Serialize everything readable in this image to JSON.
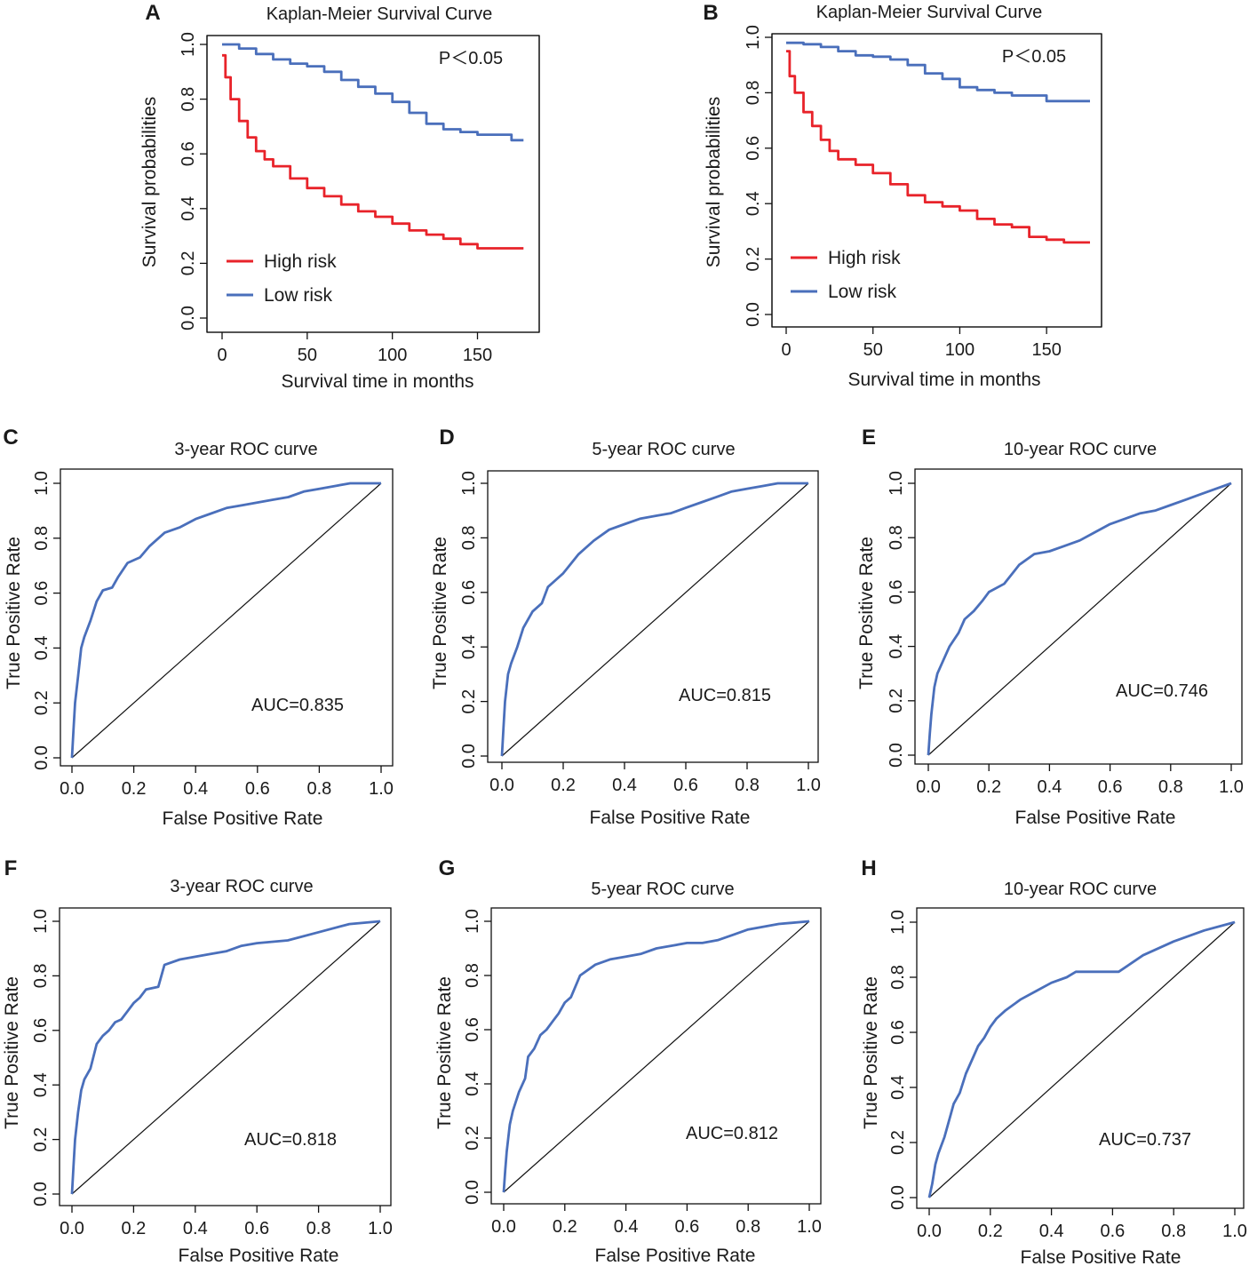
{
  "chart_data": [
    {
      "id": "A",
      "type": "line",
      "panel_label": "A",
      "title": "Kaplan-Meier Survival Curve",
      "xlabel": "Survival time in months",
      "ylabel": "Survival probabilities",
      "xlim": [
        0,
        180
      ],
      "ylim": [
        0,
        1
      ],
      "xticks": [
        0,
        50,
        100,
        150
      ],
      "xtick_labels": [
        "0",
        "50",
        "100",
        "150"
      ],
      "yticks": [
        0,
        0.2,
        0.4,
        0.6,
        0.8,
        1.0
      ],
      "ytick_labels": [
        "0.0",
        "0.2",
        "0.4",
        "0.6",
        "0.8",
        "1.0"
      ],
      "annotation": "P＜0.05",
      "legend_position": "bottom-left",
      "series": [
        {
          "name": "High risk",
          "color": "#e8232a",
          "x": [
            0,
            2,
            5,
            10,
            15,
            20,
            25,
            30,
            40,
            50,
            60,
            70,
            80,
            90,
            100,
            110,
            120,
            130,
            140,
            150,
            160,
            170,
            177
          ],
          "y": [
            0.96,
            0.88,
            0.8,
            0.72,
            0.66,
            0.61,
            0.58,
            0.555,
            0.51,
            0.475,
            0.445,
            0.415,
            0.39,
            0.37,
            0.345,
            0.32,
            0.305,
            0.29,
            0.27,
            0.255,
            0.255,
            0.255,
            0.255
          ]
        },
        {
          "name": "Low risk",
          "color": "#4a6fbb",
          "x": [
            0,
            10,
            20,
            30,
            40,
            50,
            60,
            70,
            80,
            90,
            100,
            110,
            120,
            130,
            140,
            150,
            160,
            170,
            177
          ],
          "y": [
            1.0,
            0.985,
            0.965,
            0.945,
            0.93,
            0.92,
            0.9,
            0.87,
            0.845,
            0.82,
            0.79,
            0.75,
            0.71,
            0.69,
            0.68,
            0.67,
            0.67,
            0.65,
            0.65
          ]
        }
      ]
    },
    {
      "id": "B",
      "type": "line",
      "panel_label": "B",
      "title": "Kaplan-Meier Survival Curve",
      "xlabel": "Survival time in months",
      "ylabel": "Survival probabilities",
      "xlim": [
        0,
        175
      ],
      "ylim": [
        0,
        1
      ],
      "xticks": [
        0,
        50,
        100,
        150
      ],
      "xtick_labels": [
        "0",
        "50",
        "100",
        "150"
      ],
      "yticks": [
        0,
        0.2,
        0.4,
        0.6,
        0.8,
        1.0
      ],
      "ytick_labels": [
        "0.0",
        "0.2",
        "0.4",
        "0.6",
        "0.8",
        "1.0"
      ],
      "annotation": "P＜0.05",
      "legend_position": "bottom-left",
      "series": [
        {
          "name": "High risk",
          "color": "#e8232a",
          "x": [
            0,
            2,
            5,
            10,
            15,
            20,
            25,
            30,
            40,
            50,
            60,
            70,
            80,
            90,
            100,
            110,
            120,
            130,
            136,
            140,
            150,
            160,
            175
          ],
          "y": [
            0.95,
            0.86,
            0.8,
            0.73,
            0.68,
            0.63,
            0.59,
            0.56,
            0.54,
            0.51,
            0.47,
            0.43,
            0.405,
            0.39,
            0.375,
            0.345,
            0.325,
            0.315,
            0.315,
            0.28,
            0.27,
            0.26,
            0.26
          ]
        },
        {
          "name": "Low risk",
          "color": "#4a6fbb",
          "x": [
            0,
            10,
            20,
            30,
            40,
            50,
            60,
            70,
            80,
            90,
            100,
            110,
            120,
            130,
            140,
            150,
            160,
            175
          ],
          "y": [
            0.98,
            0.975,
            0.965,
            0.95,
            0.935,
            0.93,
            0.92,
            0.9,
            0.87,
            0.85,
            0.82,
            0.81,
            0.8,
            0.79,
            0.79,
            0.77,
            0.77,
            0.77
          ]
        }
      ]
    },
    {
      "id": "C",
      "type": "line",
      "panel_label": "C",
      "title": "3-year ROC curve",
      "xlabel": "False Positive Rate",
      "ylabel": "True Positive Rate",
      "xlim": [
        0,
        1
      ],
      "ylim": [
        0,
        1
      ],
      "xticks": [
        0,
        0.2,
        0.4,
        0.6,
        0.8,
        1.0
      ],
      "xtick_labels": [
        "0.0",
        "0.2",
        "0.4",
        "0.6",
        "0.8",
        "1.0"
      ],
      "yticks": [
        0,
        0.2,
        0.4,
        0.6,
        0.8,
        1.0
      ],
      "ytick_labels": [
        "0.0",
        "0.2",
        "0.4",
        "0.6",
        "0.8",
        "1.0"
      ],
      "annotation": "AUC=0.835",
      "diagonal": true,
      "series": [
        {
          "name": "ROC",
          "color": "#4a6fbb",
          "x": [
            0,
            0.005,
            0.01,
            0.02,
            0.03,
            0.04,
            0.06,
            0.08,
            0.1,
            0.13,
            0.15,
            0.18,
            0.2,
            0.22,
            0.25,
            0.3,
            0.35,
            0.4,
            0.45,
            0.5,
            0.55,
            0.6,
            0.65,
            0.7,
            0.75,
            0.8,
            0.85,
            0.9,
            1.0
          ],
          "y": [
            0,
            0.1,
            0.2,
            0.3,
            0.4,
            0.44,
            0.5,
            0.57,
            0.61,
            0.62,
            0.66,
            0.71,
            0.72,
            0.73,
            0.77,
            0.82,
            0.84,
            0.87,
            0.89,
            0.91,
            0.92,
            0.93,
            0.94,
            0.95,
            0.97,
            0.98,
            0.99,
            1.0,
            1.0
          ]
        }
      ]
    },
    {
      "id": "D",
      "type": "line",
      "panel_label": "D",
      "title": "5-year ROC curve",
      "xlabel": "False Positive Rate",
      "ylabel": "True Positive Rate",
      "xlim": [
        0,
        1
      ],
      "ylim": [
        0,
        1
      ],
      "xticks": [
        0,
        0.2,
        0.4,
        0.6,
        0.8,
        1.0
      ],
      "xtick_labels": [
        "0.0",
        "0.2",
        "0.4",
        "0.6",
        "0.8",
        "1.0"
      ],
      "yticks": [
        0,
        0.2,
        0.4,
        0.6,
        0.8,
        1.0
      ],
      "ytick_labels": [
        "0.0",
        "0.2",
        "0.4",
        "0.6",
        "0.8",
        "1.0"
      ],
      "annotation": "AUC=0.815",
      "diagonal": true,
      "series": [
        {
          "name": "ROC",
          "color": "#4a6fbb",
          "x": [
            0,
            0.005,
            0.01,
            0.02,
            0.03,
            0.05,
            0.07,
            0.1,
            0.13,
            0.15,
            0.18,
            0.2,
            0.25,
            0.3,
            0.35,
            0.4,
            0.45,
            0.5,
            0.55,
            0.6,
            0.65,
            0.7,
            0.75,
            0.8,
            0.85,
            0.9,
            1.0
          ],
          "y": [
            0,
            0.1,
            0.2,
            0.3,
            0.34,
            0.4,
            0.47,
            0.53,
            0.56,
            0.62,
            0.65,
            0.67,
            0.74,
            0.79,
            0.83,
            0.85,
            0.87,
            0.88,
            0.89,
            0.91,
            0.93,
            0.95,
            0.97,
            0.98,
            0.99,
            1.0,
            1.0
          ]
        }
      ]
    },
    {
      "id": "E",
      "type": "line",
      "panel_label": "E",
      "title": "10-year ROC curve",
      "xlabel": "False Positive Rate",
      "ylabel": "True Positive Rate",
      "xlim": [
        0,
        1
      ],
      "ylim": [
        0,
        1
      ],
      "xticks": [
        0,
        0.2,
        0.4,
        0.6,
        0.8,
        1.0
      ],
      "xtick_labels": [
        "0.0",
        "0.2",
        "0.4",
        "0.6",
        "0.8",
        "1.0"
      ],
      "yticks": [
        0,
        0.2,
        0.4,
        0.6,
        0.8,
        1.0
      ],
      "ytick_labels": [
        "0.0",
        "0.2",
        "0.4",
        "0.6",
        "0.8",
        "1.0"
      ],
      "annotation": "AUC=0.746",
      "diagonal": true,
      "series": [
        {
          "name": "ROC",
          "color": "#4a6fbb",
          "x": [
            0,
            0.005,
            0.01,
            0.02,
            0.03,
            0.05,
            0.07,
            0.1,
            0.12,
            0.15,
            0.18,
            0.2,
            0.25,
            0.3,
            0.35,
            0.4,
            0.45,
            0.5,
            0.55,
            0.6,
            0.65,
            0.7,
            0.75,
            0.8,
            0.85,
            0.9,
            0.95,
            1.0
          ],
          "y": [
            0,
            0.08,
            0.15,
            0.25,
            0.3,
            0.35,
            0.4,
            0.45,
            0.5,
            0.53,
            0.57,
            0.6,
            0.63,
            0.7,
            0.74,
            0.75,
            0.77,
            0.79,
            0.82,
            0.85,
            0.87,
            0.89,
            0.9,
            0.92,
            0.94,
            0.96,
            0.98,
            1.0
          ]
        }
      ]
    },
    {
      "id": "F",
      "type": "line",
      "panel_label": "F",
      "title": "3-year ROC curve",
      "xlabel": "False Positive Rate",
      "ylabel": "True Positive Rate",
      "xlim": [
        0,
        1
      ],
      "ylim": [
        0,
        1
      ],
      "xticks": [
        0,
        0.2,
        0.4,
        0.6,
        0.8,
        1.0
      ],
      "xtick_labels": [
        "0.0",
        "0.2",
        "0.4",
        "0.6",
        "0.8",
        "1.0"
      ],
      "yticks": [
        0,
        0.2,
        0.4,
        0.6,
        0.8,
        1.0
      ],
      "ytick_labels": [
        "0.0",
        "0.2",
        "0.4",
        "0.6",
        "0.8",
        "1.0"
      ],
      "annotation": "AUC=0.818",
      "diagonal": true,
      "series": [
        {
          "name": "ROC",
          "color": "#4a6fbb",
          "x": [
            0,
            0.005,
            0.01,
            0.02,
            0.03,
            0.04,
            0.06,
            0.08,
            0.1,
            0.12,
            0.14,
            0.16,
            0.18,
            0.2,
            0.22,
            0.24,
            0.28,
            0.3,
            0.35,
            0.4,
            0.45,
            0.5,
            0.55,
            0.6,
            0.7,
            0.8,
            0.9,
            1.0
          ],
          "y": [
            0,
            0.1,
            0.2,
            0.3,
            0.38,
            0.42,
            0.46,
            0.55,
            0.58,
            0.6,
            0.63,
            0.64,
            0.67,
            0.7,
            0.72,
            0.75,
            0.76,
            0.84,
            0.86,
            0.87,
            0.88,
            0.89,
            0.91,
            0.92,
            0.93,
            0.96,
            0.99,
            1.0
          ]
        }
      ]
    },
    {
      "id": "G",
      "type": "line",
      "panel_label": "G",
      "title": "5-year ROC curve",
      "xlabel": "False Positive Rate",
      "ylabel": "True Positive Rate",
      "xlim": [
        0,
        1
      ],
      "ylim": [
        0,
        1
      ],
      "xticks": [
        0,
        0.2,
        0.4,
        0.6,
        0.8,
        1.0
      ],
      "xtick_labels": [
        "0.0",
        "0.2",
        "0.4",
        "0.6",
        "0.8",
        "1.0"
      ],
      "yticks": [
        0,
        0.2,
        0.4,
        0.6,
        0.8,
        1.0
      ],
      "ytick_labels": [
        "0.0",
        "0.2",
        "0.4",
        "0.6",
        "0.8",
        "1.0"
      ],
      "annotation": "AUC=0.812",
      "diagonal": true,
      "series": [
        {
          "name": "ROC",
          "color": "#4a6fbb",
          "x": [
            0,
            0.005,
            0.01,
            0.02,
            0.03,
            0.05,
            0.07,
            0.08,
            0.1,
            0.12,
            0.14,
            0.16,
            0.18,
            0.2,
            0.22,
            0.25,
            0.3,
            0.35,
            0.4,
            0.45,
            0.5,
            0.55,
            0.6,
            0.65,
            0.7,
            0.75,
            0.8,
            0.9,
            1.0
          ],
          "y": [
            0,
            0.08,
            0.15,
            0.25,
            0.3,
            0.37,
            0.42,
            0.5,
            0.53,
            0.58,
            0.6,
            0.63,
            0.66,
            0.7,
            0.72,
            0.8,
            0.84,
            0.86,
            0.87,
            0.88,
            0.9,
            0.91,
            0.92,
            0.92,
            0.93,
            0.95,
            0.97,
            0.99,
            1.0
          ]
        }
      ]
    },
    {
      "id": "H",
      "type": "line",
      "panel_label": "H",
      "title": "10-year ROC curve",
      "xlabel": "False Positive Rate",
      "ylabel": "True Positive Rate",
      "xlim": [
        0,
        1
      ],
      "ylim": [
        0,
        1
      ],
      "xticks": [
        0,
        0.2,
        0.4,
        0.6,
        0.8,
        1.0
      ],
      "xtick_labels": [
        "0.0",
        "0.2",
        "0.4",
        "0.6",
        "0.8",
        "1.0"
      ],
      "yticks": [
        0,
        0.2,
        0.4,
        0.6,
        0.8,
        1.0
      ],
      "ytick_labels": [
        "0.0",
        "0.2",
        "0.4",
        "0.6",
        "0.8",
        "1.0"
      ],
      "annotation": "AUC=0.737",
      "diagonal": true,
      "series": [
        {
          "name": "ROC",
          "color": "#4a6fbb",
          "x": [
            0,
            0.01,
            0.02,
            0.03,
            0.05,
            0.07,
            0.08,
            0.1,
            0.12,
            0.14,
            0.16,
            0.18,
            0.2,
            0.22,
            0.25,
            0.3,
            0.35,
            0.4,
            0.45,
            0.48,
            0.55,
            0.62,
            0.7,
            0.8,
            0.9,
            1.0
          ],
          "y": [
            0,
            0.05,
            0.12,
            0.16,
            0.22,
            0.3,
            0.34,
            0.38,
            0.45,
            0.5,
            0.55,
            0.58,
            0.62,
            0.65,
            0.68,
            0.72,
            0.75,
            0.78,
            0.8,
            0.82,
            0.82,
            0.82,
            0.88,
            0.93,
            0.97,
            1.0
          ]
        }
      ]
    }
  ]
}
